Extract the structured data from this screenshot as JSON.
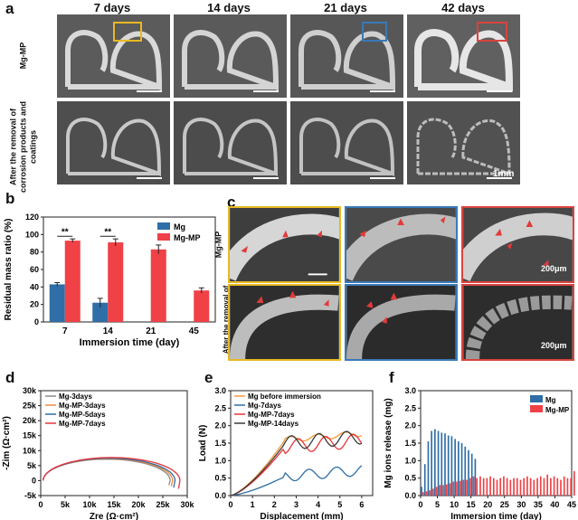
{
  "panel_a": {
    "label": "a",
    "columns": [
      "7 days",
      "14 days",
      "21 days",
      "42 days"
    ],
    "row1_label": "Mg-MP",
    "row2_label": "After the removal of corrosion products and coatings",
    "scale": "1mm"
  },
  "panel_c": {
    "label": "c",
    "row1_label": "Mg-MP",
    "row2_label": "After the removal of corrosion products and coatings",
    "scale1": "200μm",
    "scale2": "200μm"
  },
  "colors": {
    "mg": "#2f6ea6",
    "mgmp": "#ef4146",
    "yellow": "#e8b923",
    "blue": "#3a79b8",
    "red": "#d9433e"
  },
  "chart_data": [
    {
      "label": "b",
      "type": "bar",
      "xlabel": "Immersion time (day)",
      "ylabel": "Residual mass ratio (%)",
      "categories": [
        "7",
        "14",
        "21",
        "45"
      ],
      "ylim": [
        0,
        120
      ],
      "yticks": [
        "0",
        "20",
        "40",
        "60",
        "80",
        "100",
        "120"
      ],
      "series": [
        {
          "name": "Mg",
          "values": [
            43,
            22,
            null,
            null
          ],
          "errors": [
            2,
            5,
            null,
            null
          ]
        },
        {
          "name": "Mg-MP",
          "values": [
            93,
            91,
            83,
            36
          ],
          "errors": [
            2,
            4,
            5,
            3
          ]
        }
      ],
      "significance": [
        "**",
        "**"
      ],
      "legend": "top-right"
    },
    {
      "label": "d",
      "type": "line",
      "xlabel": "Zre (Ω·cm²)",
      "ylabel": "-Zim (Ω·cm²)",
      "xticks": [
        "0",
        "5k",
        "10k",
        "15k",
        "20k",
        "25k",
        "30k"
      ],
      "yticks": [
        "-5k",
        "0",
        "5k",
        "10k",
        "15k",
        "20k",
        "25k",
        "30k"
      ],
      "xlim": [
        0,
        30000
      ],
      "ylim": [
        -5000,
        30000
      ],
      "series": [
        {
          "name": "Mg-3days",
          "diameter": 26000
        },
        {
          "name": "Mg-MP-3days",
          "diameter": 26500
        },
        {
          "name": "Mg-MP-5days",
          "diameter": 27000
        },
        {
          "name": "Mg-MP-7days",
          "diameter": 28000
        }
      ],
      "legend": "top-left"
    },
    {
      "label": "e",
      "type": "line",
      "xlabel": "Displacement (mm)",
      "ylabel": "Load (N)",
      "xticks": [
        "0",
        "1",
        "2",
        "3",
        "4",
        "5",
        "6"
      ],
      "yticks": [
        "0.0",
        "0.5",
        "1.0",
        "1.5",
        "2.0",
        "2.5",
        "3.0"
      ],
      "xlim": [
        0,
        6.5
      ],
      "ylim": [
        0,
        3.0
      ],
      "series": [
        {
          "name": "Mg before immersion"
        },
        {
          "name": "Mg-7days"
        },
        {
          "name": "Mg-MP-7days"
        },
        {
          "name": "Mg-MP-14days"
        }
      ],
      "legend": "top-left"
    },
    {
      "label": "f",
      "type": "bar",
      "xlabel": "Immersion time (day)",
      "ylabel": "Mg ions release (mg)",
      "xticks": [
        "0",
        "5",
        "10",
        "15",
        "20",
        "25",
        "30",
        "35",
        "40",
        "45"
      ],
      "yticks": [
        "0.0",
        "0.5",
        "1.0",
        "1.5",
        "2.0",
        "2.5",
        "3.0"
      ],
      "xlim": [
        0,
        45
      ],
      "ylim": [
        0,
        3.0
      ],
      "series": [
        {
          "name": "Mg",
          "values": [
            0.25,
            0.9,
            1.55,
            1.85,
            1.9,
            1.85,
            1.8,
            1.78,
            1.72,
            1.7,
            1.62,
            1.55,
            1.5,
            1.4,
            1.3,
            1.2,
            1.05
          ]
        },
        {
          "name": "Mg-MP",
          "values": [
            0.1,
            0.12,
            0.15,
            0.2,
            0.25,
            0.3,
            0.3,
            0.32,
            0.35,
            0.4,
            0.4,
            0.42,
            0.45,
            0.45,
            0.5,
            0.55,
            0.5,
            0.55,
            0.5,
            0.5,
            0.55,
            0.5,
            0.45,
            0.5,
            0.55,
            0.5,
            0.45,
            0.5,
            0.5,
            0.45,
            0.5,
            0.55,
            0.5,
            0.45,
            0.5,
            0.55,
            0.5,
            0.6,
            0.5,
            0.55,
            0.5,
            0.45,
            0.55,
            0.5,
            0.5,
            0.7
          ]
        }
      ],
      "legend": "top-right"
    }
  ]
}
